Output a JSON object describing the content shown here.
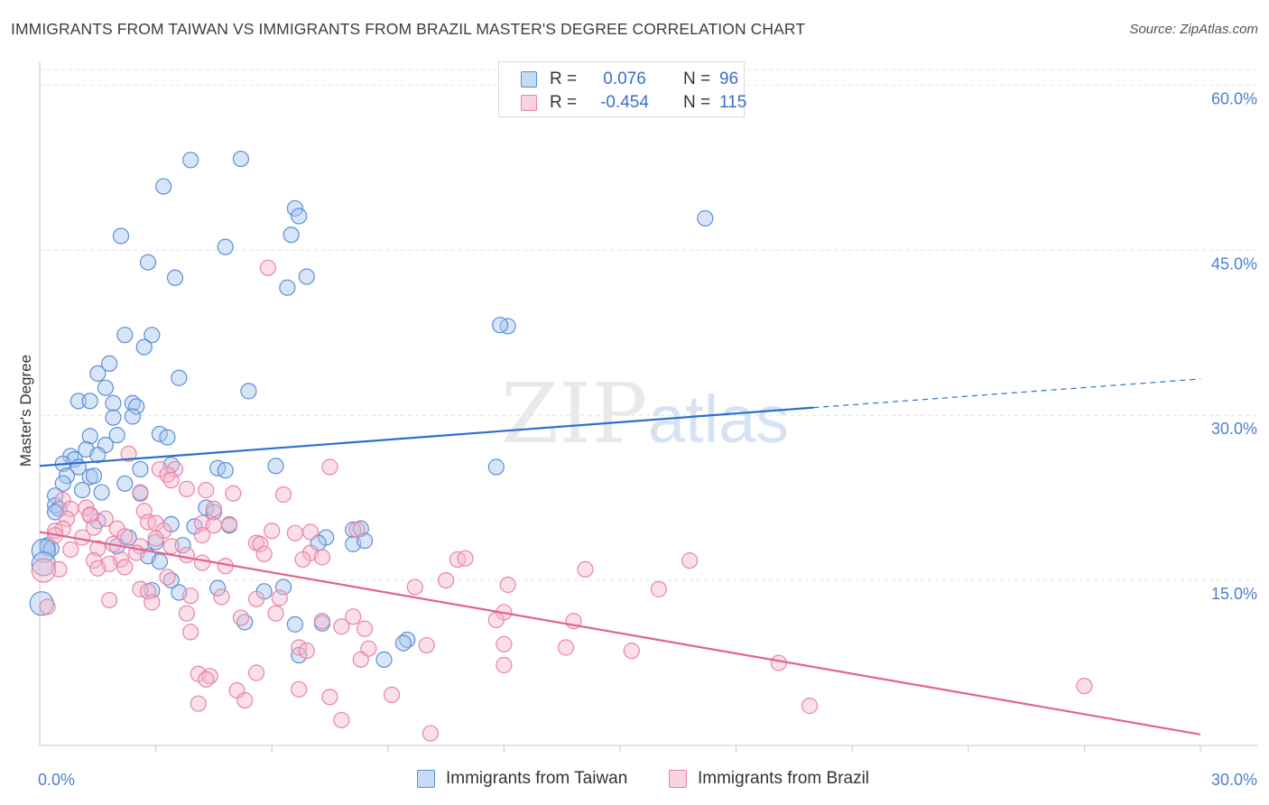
{
  "title": "IMMIGRANTS FROM TAIWAN VS IMMIGRANTS FROM BRAZIL MASTER'S DEGREE CORRELATION CHART",
  "source": "Source: ZipAtlas.com",
  "watermark": {
    "zip": "ZIP",
    "atlas": "atlas"
  },
  "stats": {
    "taiwan": {
      "r_label": "R =",
      "r_value": "0.076",
      "n_label": "N =",
      "n_value": "96"
    },
    "brazil": {
      "r_label": "R =",
      "r_value": "-0.454",
      "n_label": "N =",
      "n_value": "115"
    }
  },
  "legend": {
    "taiwan": "Immigrants from Taiwan",
    "brazil": "Immigrants from Brazil"
  },
  "colors": {
    "taiwan_fill": "#a8c6ee",
    "taiwan_stroke": "#5b8fd9",
    "taiwan_line": "#2f6fce",
    "brazil_fill": "#f5b8cc",
    "brazil_stroke": "#e885a7",
    "brazil_line": "#e0648f",
    "tick_text": "#4a7fd4",
    "grid": "#e2e2e2"
  },
  "chart_data": {
    "type": "scatter",
    "ylabel": "Master's Degree",
    "xlim": [
      0,
      30
    ],
    "ylim": [
      0,
      62
    ],
    "x_ticks": [
      {
        "value": 0,
        "label": "0.0%"
      },
      {
        "value": 30,
        "label": "30.0%"
      }
    ],
    "x_minor_ticks": [
      3,
      6,
      9,
      12,
      15,
      18,
      21,
      24,
      27
    ],
    "y_ticks": [
      {
        "value": 15,
        "label": "15.0%"
      },
      {
        "value": 30,
        "label": "30.0%"
      },
      {
        "value": 45,
        "label": "45.0%"
      },
      {
        "value": 60,
        "label": "60.0%"
      }
    ],
    "grid": true,
    "legend_position": "bottom",
    "series": [
      {
        "name": "Immigrants from Taiwan",
        "color": "#5b8fd9",
        "trend": {
          "x0": 0,
          "y0": 25.4,
          "x1": 20,
          "y1": 30.7,
          "dashed_to_x": 30,
          "dashed_to_y": 33.3
        },
        "points": [
          [
            3.9,
            53.2
          ],
          [
            5.2,
            53.3
          ],
          [
            3.2,
            50.8
          ],
          [
            6.6,
            48.8
          ],
          [
            6.7,
            48.1
          ],
          [
            17.2,
            47.9
          ],
          [
            2.1,
            46.3
          ],
          [
            4.8,
            45.3
          ],
          [
            6.5,
            46.4
          ],
          [
            2.8,
            43.9
          ],
          [
            3.5,
            42.5
          ],
          [
            6.9,
            42.6
          ],
          [
            6.4,
            41.6
          ],
          [
            12.1,
            38.1
          ],
          [
            11.9,
            38.2
          ],
          [
            2.2,
            37.3
          ],
          [
            2.9,
            37.3
          ],
          [
            2.7,
            36.2
          ],
          [
            1.8,
            34.7
          ],
          [
            1.5,
            33.8
          ],
          [
            3.6,
            33.4
          ],
          [
            1.7,
            32.5
          ],
          [
            5.4,
            32.2
          ],
          [
            1.0,
            31.3
          ],
          [
            1.3,
            31.3
          ],
          [
            2.4,
            31.1
          ],
          [
            1.9,
            31.1
          ],
          [
            2.5,
            30.8
          ],
          [
            1.9,
            29.8
          ],
          [
            2.4,
            29.9
          ],
          [
            3.1,
            28.3
          ],
          [
            3.3,
            28.0
          ],
          [
            1.3,
            28.1
          ],
          [
            2.0,
            28.2
          ],
          [
            1.7,
            27.3
          ],
          [
            1.2,
            26.9
          ],
          [
            0.8,
            26.3
          ],
          [
            0.9,
            26.0
          ],
          [
            1.5,
            26.4
          ],
          [
            0.6,
            25.6
          ],
          [
            1.0,
            25.3
          ],
          [
            2.6,
            25.1
          ],
          [
            3.4,
            25.5
          ],
          [
            4.6,
            25.2
          ],
          [
            4.8,
            25.0
          ],
          [
            6.1,
            25.4
          ],
          [
            11.8,
            25.3
          ],
          [
            0.7,
            24.5
          ],
          [
            1.3,
            24.4
          ],
          [
            1.4,
            24.5
          ],
          [
            0.6,
            23.8
          ],
          [
            2.2,
            23.8
          ],
          [
            1.1,
            23.2
          ],
          [
            1.6,
            23.0
          ],
          [
            0.4,
            22.7
          ],
          [
            2.6,
            22.9
          ],
          [
            0.4,
            21.8
          ],
          [
            0.5,
            21.5
          ],
          [
            0.4,
            21.2
          ],
          [
            4.3,
            21.6
          ],
          [
            4.5,
            21.2
          ],
          [
            1.5,
            20.4
          ],
          [
            3.4,
            20.1
          ],
          [
            4.0,
            19.9
          ],
          [
            4.9,
            20.0
          ],
          [
            8.1,
            19.6
          ],
          [
            8.3,
            19.7
          ],
          [
            2.3,
            18.9
          ],
          [
            7.4,
            18.9
          ],
          [
            8.1,
            18.3
          ],
          [
            8.4,
            18.6
          ],
          [
            7.2,
            18.4
          ],
          [
            3.0,
            18.5
          ],
          [
            3.7,
            18.2
          ],
          [
            0.2,
            18.2
          ],
          [
            0.2,
            18.0
          ],
          [
            0.3,
            17.9
          ],
          [
            2.8,
            17.2
          ],
          [
            3.1,
            16.7
          ],
          [
            0.1,
            17.7
          ],
          [
            2.0,
            18.1
          ],
          [
            4.6,
            14.3
          ],
          [
            3.4,
            15.0
          ],
          [
            6.3,
            14.4
          ],
          [
            2.9,
            14.1
          ],
          [
            3.6,
            13.9
          ],
          [
            5.8,
            14.0
          ],
          [
            9.5,
            9.6
          ],
          [
            9.4,
            9.3
          ],
          [
            6.6,
            11.0
          ],
          [
            7.3,
            11.1
          ],
          [
            6.7,
            8.2
          ],
          [
            8.9,
            7.8
          ],
          [
            0.05,
            12.9
          ],
          [
            5.3,
            11.2
          ],
          [
            0.1,
            16.5
          ]
        ]
      },
      {
        "name": "Immigrants from Brazil",
        "color": "#e885a7",
        "trend": {
          "x0": 0,
          "y0": 19.4,
          "x1": 30,
          "y1": 1.0
        },
        "points": [
          [
            5.9,
            43.4
          ],
          [
            2.3,
            26.5
          ],
          [
            7.5,
            25.3
          ],
          [
            3.1,
            25.1
          ],
          [
            3.5,
            25.1
          ],
          [
            3.3,
            24.6
          ],
          [
            3.4,
            24.1
          ],
          [
            3.8,
            23.3
          ],
          [
            4.3,
            23.2
          ],
          [
            2.6,
            23.0
          ],
          [
            5.0,
            22.9
          ],
          [
            6.3,
            22.8
          ],
          [
            0.6,
            22.3
          ],
          [
            1.3,
            21.0
          ],
          [
            0.8,
            21.5
          ],
          [
            1.2,
            21.6
          ],
          [
            2.7,
            21.3
          ],
          [
            4.5,
            21.5
          ],
          [
            1.7,
            20.6
          ],
          [
            0.7,
            20.6
          ],
          [
            1.3,
            20.9
          ],
          [
            2.8,
            20.3
          ],
          [
            3.0,
            20.2
          ],
          [
            4.2,
            20.2
          ],
          [
            4.9,
            20.1
          ],
          [
            0.4,
            19.5
          ],
          [
            0.6,
            19.7
          ],
          [
            1.4,
            19.8
          ],
          [
            2.0,
            19.7
          ],
          [
            3.2,
            19.5
          ],
          [
            4.5,
            20.0
          ],
          [
            6.0,
            19.5
          ],
          [
            6.6,
            19.3
          ],
          [
            7.0,
            19.4
          ],
          [
            8.2,
            19.6
          ],
          [
            1.1,
            18.9
          ],
          [
            2.2,
            19.0
          ],
          [
            3.0,
            18.8
          ],
          [
            4.2,
            19.1
          ],
          [
            5.6,
            18.4
          ],
          [
            5.7,
            18.3
          ],
          [
            1.9,
            18.3
          ],
          [
            2.6,
            18.1
          ],
          [
            3.4,
            18.1
          ],
          [
            0.8,
            17.8
          ],
          [
            1.5,
            17.9
          ],
          [
            2.5,
            17.5
          ],
          [
            3.8,
            17.3
          ],
          [
            5.8,
            17.4
          ],
          [
            7.0,
            17.5
          ],
          [
            7.3,
            17.1
          ],
          [
            1.4,
            16.8
          ],
          [
            2.1,
            16.9
          ],
          [
            1.8,
            16.5
          ],
          [
            4.2,
            16.6
          ],
          [
            6.8,
            16.9
          ],
          [
            10.8,
            16.9
          ],
          [
            11.0,
            17.0
          ],
          [
            16.8,
            16.8
          ],
          [
            0.5,
            16.0
          ],
          [
            1.5,
            16.1
          ],
          [
            2.2,
            16.2
          ],
          [
            14.1,
            16.0
          ],
          [
            4.8,
            16.3
          ],
          [
            3.3,
            15.3
          ],
          [
            9.7,
            14.4
          ],
          [
            10.5,
            15.0
          ],
          [
            12.1,
            14.6
          ],
          [
            16.0,
            14.2
          ],
          [
            2.6,
            14.2
          ],
          [
            2.8,
            14.0
          ],
          [
            4.7,
            13.5
          ],
          [
            6.2,
            13.4
          ],
          [
            5.6,
            13.3
          ],
          [
            2.9,
            13.0
          ],
          [
            3.9,
            13.6
          ],
          [
            1.8,
            13.2
          ],
          [
            0.2,
            12.6
          ],
          [
            3.8,
            12.0
          ],
          [
            6.1,
            12.0
          ],
          [
            8.1,
            11.7
          ],
          [
            12.0,
            12.1
          ],
          [
            13.8,
            11.3
          ],
          [
            5.2,
            11.6
          ],
          [
            7.3,
            11.3
          ],
          [
            7.8,
            10.8
          ],
          [
            11.8,
            11.4
          ],
          [
            3.9,
            10.3
          ],
          [
            8.4,
            10.6
          ],
          [
            12.0,
            9.2
          ],
          [
            10.0,
            9.1
          ],
          [
            13.6,
            8.9
          ],
          [
            15.3,
            8.6
          ],
          [
            6.7,
            8.9
          ],
          [
            6.9,
            8.6
          ],
          [
            8.5,
            8.8
          ],
          [
            19.1,
            7.5
          ],
          [
            12.0,
            7.3
          ],
          [
            4.1,
            6.5
          ],
          [
            4.4,
            6.3
          ],
          [
            5.6,
            6.6
          ],
          [
            4.3,
            6.0
          ],
          [
            5.1,
            5.0
          ],
          [
            6.7,
            5.1
          ],
          [
            9.1,
            4.6
          ],
          [
            7.5,
            4.4
          ],
          [
            5.3,
            4.1
          ],
          [
            4.1,
            3.8
          ],
          [
            19.9,
            3.6
          ],
          [
            27.0,
            5.4
          ],
          [
            7.8,
            2.3
          ],
          [
            10.1,
            1.1
          ],
          [
            8.3,
            7.8
          ],
          [
            0.1,
            15.9
          ],
          [
            0.4,
            19.1
          ]
        ]
      }
    ]
  }
}
